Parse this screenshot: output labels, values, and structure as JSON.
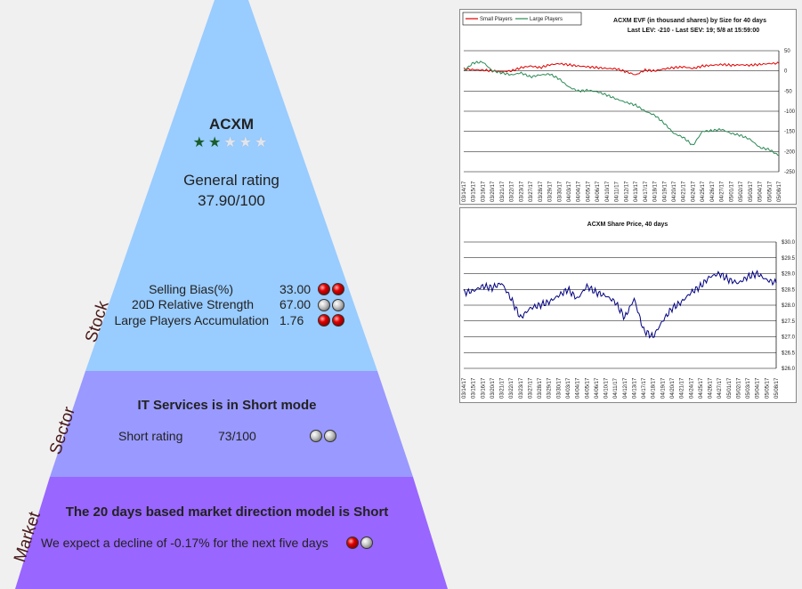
{
  "stock": {
    "level_label": "Stock",
    "ticker": "ACXM",
    "stars": [
      "filled",
      "filled",
      "empty",
      "empty",
      "empty"
    ],
    "general_rating_label": "General rating",
    "general_rating_value": "37.90/100",
    "metrics": [
      {
        "label": "Selling Bias(%)",
        "value": "33.00",
        "dots": [
          "red",
          "red"
        ]
      },
      {
        "label": "20D Relative Strength",
        "value": "67.00",
        "dots": [
          "gray",
          "gray"
        ]
      },
      {
        "label": "Large Players Accumulation",
        "value": "1.76",
        "dots": [
          "red",
          "red"
        ]
      }
    ]
  },
  "sector": {
    "level_label": "Sector",
    "title": "IT Services is in Short mode",
    "rating_label": "Short rating",
    "rating_value": "73/100",
    "dots": [
      "gray",
      "gray"
    ]
  },
  "market": {
    "level_label": "Market",
    "title": "The 20 days based market direction model is Short",
    "text": "We expect a decline of -0.17% for the next five days",
    "dots": [
      "red",
      "gray"
    ]
  },
  "colors": {
    "stock": "#99ccff",
    "sector": "#9999ff",
    "market": "#9966ff",
    "small": "#e00000",
    "large": "#2a8a55",
    "price": "#000080"
  },
  "dates": [
    "03/14/17",
    "03/15/17",
    "03/16/17",
    "03/20/17",
    "03/21/17",
    "03/22/17",
    "03/23/17",
    "03/27/17",
    "03/28/17",
    "03/29/17",
    "03/30/17",
    "04/03/17",
    "04/04/17",
    "04/05/17",
    "04/06/17",
    "04/10/17",
    "04/11/17",
    "04/12/17",
    "04/13/17",
    "04/17/17",
    "04/18/17",
    "04/19/17",
    "04/20/17",
    "04/21/17",
    "04/24/17",
    "04/25/17",
    "04/26/17",
    "04/27/17",
    "05/01/17",
    "05/02/17",
    "05/03/17",
    "05/04/17",
    "05/05/17",
    "05/08/17"
  ],
  "chart_data": [
    {
      "type": "line",
      "title": "ACXM EVF (in thousand shares) by Size for 40 days",
      "subtitle": "Last LEV: -210 - Last SEV: 19; 5/8 at 15:59:00",
      "legend": "top-left",
      "grid": true,
      "ylim": [
        -250,
        50
      ],
      "yticks": [
        "50",
        "0",
        "-50",
        "-100",
        "-150",
        "-200",
        "-250"
      ],
      "series": [
        {
          "name": "Small Players",
          "color": "#e00000",
          "values": [
            5,
            3,
            2,
            0,
            -2,
            0,
            8,
            12,
            8,
            15,
            18,
            15,
            12,
            10,
            8,
            6,
            5,
            -2,
            -10,
            2,
            0,
            5,
            8,
            10,
            6,
            12,
            14,
            16,
            14,
            15,
            14,
            16,
            18,
            19
          ]
        },
        {
          "name": "Large Players",
          "color": "#2a8a55",
          "values": [
            0,
            20,
            22,
            0,
            -5,
            -10,
            -5,
            -15,
            -10,
            -8,
            -20,
            -40,
            -50,
            -48,
            -52,
            -60,
            -70,
            -78,
            -85,
            -100,
            -110,
            -130,
            -155,
            -165,
            -185,
            -150,
            -148,
            -145,
            -155,
            -160,
            -170,
            -190,
            -195,
            -210
          ]
        }
      ]
    },
    {
      "type": "line",
      "title": "ACXM Share Price, 40 days",
      "grid": true,
      "ylim": [
        26,
        30
      ],
      "yticks": [
        "$30.0",
        "$29.5",
        "$29.0",
        "$28.5",
        "$28.0",
        "$27.5",
        "$27.0",
        "$26.5",
        "$26.0"
      ],
      "series": [
        {
          "name": "",
          "color": "#000080",
          "values": [
            28.4,
            28.45,
            28.6,
            28.55,
            28.7,
            28.2,
            27.6,
            27.9,
            28.0,
            28.1,
            28.3,
            28.5,
            28.2,
            28.6,
            28.4,
            28.3,
            28.1,
            27.6,
            28.2,
            27.2,
            27.0,
            27.5,
            27.9,
            28.1,
            28.4,
            28.6,
            28.9,
            29.0,
            28.8,
            28.7,
            28.9,
            29.0,
            28.8,
            28.7
          ]
        }
      ]
    }
  ]
}
